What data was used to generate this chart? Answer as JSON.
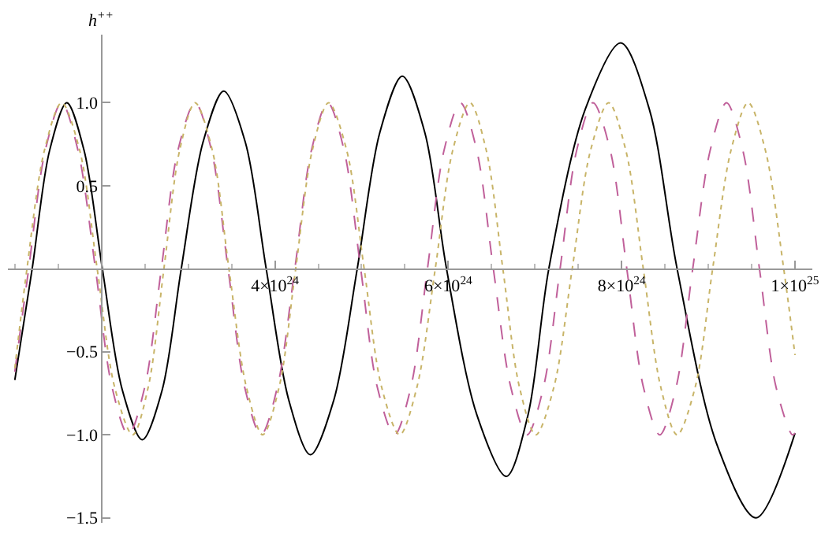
{
  "chart_data": {
    "type": "line",
    "ylabel": "h$^{++}$",
    "xlim": [
      9.2e+23,
      1.02e+25
    ],
    "ylim": [
      -1.53,
      1.41
    ],
    "xticks": [
      {
        "value": 4e+24,
        "label": "4×10$^{24}$"
      },
      {
        "value": 6e+24,
        "label": "6×10$^{24}$"
      },
      {
        "value": 8e+24,
        "label": "8×10$^{24}$"
      },
      {
        "value": 1e+25,
        "label": "1×10$^{25}$"
      },
      {
        "value": 1e+24,
        "label": null
      },
      {
        "value": 1.5e+24,
        "label": null
      },
      {
        "value": 2.5e+24,
        "label": null
      },
      {
        "value": 3e+24,
        "label": null
      },
      {
        "value": 3.5e+24,
        "label": null
      },
      {
        "value": 4.5e+24,
        "label": null
      },
      {
        "value": 5e+24,
        "label": null
      },
      {
        "value": 5.5e+24,
        "label": null
      },
      {
        "value": 6.5e+24,
        "label": null
      },
      {
        "value": 7e+24,
        "label": null
      },
      {
        "value": 7.5e+24,
        "label": null
      },
      {
        "value": 8.5e+24,
        "label": null
      },
      {
        "value": 9e+24,
        "label": null
      },
      {
        "value": 9.5e+24,
        "label": null
      }
    ],
    "yticks": [
      {
        "value": -1.5,
        "label": "−1.5"
      },
      {
        "value": -1.0,
        "label": "−1.0"
      },
      {
        "value": -0.5,
        "label": "−0.5"
      },
      {
        "value": 0.5,
        "label": "0.5"
      },
      {
        "value": 1.0,
        "label": "1.0"
      }
    ],
    "marker": "none",
    "series": [
      {
        "color": "#000000",
        "line_style": "solid",
        "x": [
          1e+24,
          1.2e+24,
          1.4e+24,
          1.6e+24,
          1.8e+24,
          2.01e+24,
          2.24e+24,
          2.47e+24,
          2.7e+24,
          2.92e+24,
          3.17e+24,
          3.41e+24,
          3.66e+24,
          3.9e+24,
          4.16e+24,
          4.41e+24,
          4.68e+24,
          4.95e+24,
          5.21e+24,
          5.47e+24,
          5.73e+24,
          5.98e+24,
          6.33e+24,
          6.67e+24,
          6.92e+24,
          7.16e+24,
          7.58e+24,
          7.99e+24,
          8.32e+24,
          8.64e+24,
          9.1e+24,
          9.55e+24,
          1e+25
        ],
        "values": [
          -0.67,
          0,
          0.71,
          1.0,
          0.71,
          0,
          -0.73,
          -1.03,
          -0.73,
          0,
          0.76,
          1.07,
          0.76,
          0,
          -0.79,
          -1.12,
          -0.79,
          0,
          0.82,
          1.16,
          0.82,
          0,
          -0.88,
          -1.25,
          -0.88,
          0,
          0.96,
          1.36,
          0.96,
          0,
          -1.06,
          -1.5,
          -0.99
        ]
      },
      {
        "color": "#c0609a",
        "line_style": "dashed",
        "x": [
          1e+24,
          1.16e+24,
          1.35e+24,
          1.54e+24,
          1.73e+24,
          1.93e+24,
          2.12e+24,
          2.31e+24,
          2.5e+24,
          2.69e+24,
          2.88e+24,
          3.08e+24,
          3.27e+24,
          3.46e+24,
          3.65e+24,
          3.84e+24,
          4.03e+24,
          4.23e+24,
          4.42e+24,
          4.61e+24,
          4.8e+24,
          4.99e+24,
          5.18e+24,
          5.38e+24,
          5.57e+24,
          5.76e+24,
          5.95e+24,
          6.14e+24,
          6.33e+24,
          6.52e+24,
          6.72e+24,
          6.91e+24,
          7.1e+24,
          7.29e+24,
          7.48e+24,
          7.67e+24,
          7.87e+24,
          8.06e+24,
          8.25e+24,
          8.44e+24,
          8.63e+24,
          8.82e+24,
          9.02e+24,
          9.21e+24,
          9.4e+24,
          9.59e+24,
          9.78e+24,
          9.97e+24,
          1e+25
        ],
        "values": [
          -0.62,
          0,
          0.71,
          1,
          0.71,
          0,
          -0.71,
          -1,
          -0.71,
          0,
          0.71,
          1,
          0.71,
          0,
          -0.71,
          -1,
          -0.71,
          0,
          0.71,
          1,
          0.71,
          0,
          -0.71,
          -1,
          -0.71,
          0,
          0.71,
          1,
          0.71,
          0,
          -0.71,
          -1,
          -0.71,
          0,
          0.71,
          1,
          0.71,
          0,
          -0.71,
          -1,
          -0.71,
          0,
          0.71,
          1,
          0.71,
          0,
          -0.71,
          -1,
          -0.99
        ]
      },
      {
        "color": "#c8b468",
        "line_style": "dotted",
        "x": [
          1e+24,
          1.14e+24,
          1.34e+24,
          1.54e+24,
          1.75e+24,
          1.95e+24,
          2.15e+24,
          2.36e+24,
          2.54e+24,
          2.72e+24,
          2.9e+24,
          3.08e+24,
          3.28e+24,
          3.47e+24,
          3.67e+24,
          3.86e+24,
          4.05e+24,
          4.24e+24,
          4.43e+24,
          4.62e+24,
          4.83e+24,
          5.03e+24,
          5.23e+24,
          5.44e+24,
          5.64e+24,
          5.85e+24,
          6.05e+24,
          6.25e+24,
          6.44e+24,
          6.63e+24,
          6.82e+24,
          7.01e+24,
          7.22e+24,
          7.43e+24,
          7.64e+24,
          7.85e+24,
          8.05e+24,
          8.25e+24,
          8.45e+24,
          8.64e+24,
          8.85e+24,
          9.05e+24,
          9.26e+24,
          9.46e+24,
          9.66e+24,
          9.87e+24,
          1e+25
        ],
        "values": [
          -0.6,
          0,
          0.71,
          1,
          0.71,
          0,
          -0.71,
          -1,
          -0.71,
          0,
          0.71,
          1,
          0.71,
          0,
          -0.71,
          -1,
          -0.71,
          0,
          0.71,
          1,
          0.71,
          0,
          -0.71,
          -1,
          -0.71,
          0,
          0.71,
          1,
          0.71,
          0,
          -0.71,
          -1,
          -0.71,
          0,
          0.71,
          1,
          0.71,
          0,
          -0.71,
          -1,
          -0.71,
          0,
          0.71,
          1,
          0.71,
          0,
          -0.52
        ]
      }
    ]
  }
}
